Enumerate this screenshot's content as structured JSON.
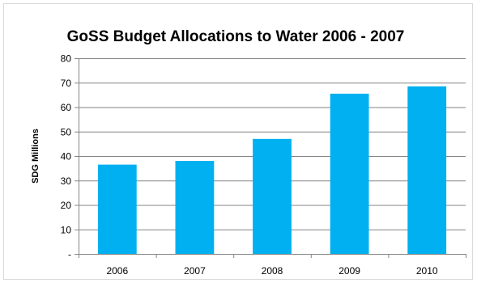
{
  "chart_data": {
    "type": "bar",
    "title": "GoSS Budget Allocations to Water 2006 - 2007",
    "xlabel": "",
    "ylabel": "SDG Millions",
    "categories": [
      "2006",
      "2007",
      "2008",
      "2009",
      "2010"
    ],
    "values": [
      36.5,
      38,
      47,
      65.5,
      68.5
    ],
    "ylim": [
      0,
      80
    ],
    "yticks": [
      0,
      10,
      20,
      30,
      40,
      50,
      60,
      70,
      80
    ],
    "ytick_labels": [
      "-",
      "10",
      "20",
      "30",
      "40",
      "50",
      "60",
      "70",
      "80"
    ],
    "grid": true,
    "legend": "none",
    "bar_color": "#00b0f0",
    "grid_color": "#868686"
  }
}
